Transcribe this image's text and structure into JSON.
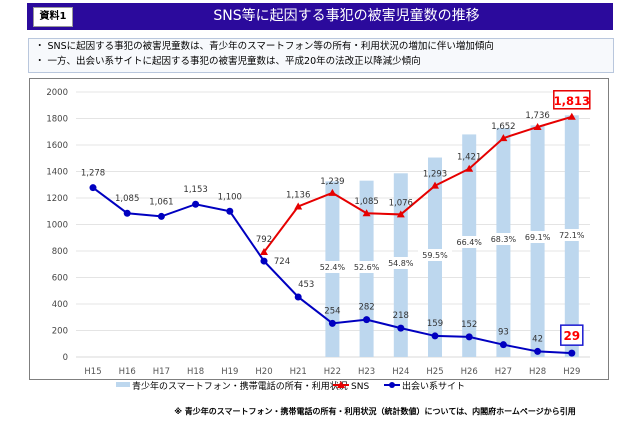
{
  "header": {
    "doc_label": "資料1",
    "title": "SNS等に起因する事犯の被害児童数の推移"
  },
  "summary": [
    "・ SNSに起因する事犯の被害児童数は、青少年のスマートフォン等の所有・利用状況の増加に伴い増加傾向",
    "・ 一方、出会い系サイトに起因する事犯の被害児童数は、平成20年の法改正以降減少傾向"
  ],
  "footnote": "※ 青少年のスマートフォン・携帯電話の所有・利用状況（統計数値）については、内閣府ホームページから引用",
  "chart_data": {
    "type": "bar+line",
    "title": "SNS等に起因する事犯の被害児童数の推移",
    "categories": [
      "H15",
      "H16",
      "H17",
      "H18",
      "H19",
      "H20",
      "H21",
      "H22",
      "H23",
      "H24",
      "H25",
      "H26",
      "H27",
      "H28",
      "H29"
    ],
    "yticks": [
      "0",
      "200",
      "400",
      "600",
      "800",
      "1000",
      "1200",
      "1400",
      "1600",
      "1800",
      "2000"
    ],
    "ylim": [
      0,
      2000
    ],
    "grid": true,
    "legend_position": "bottom",
    "series": [
      {
        "name": "青少年のスマートフォン・携帯電話の所有・利用状況",
        "kind": "bar",
        "color": "#bdd7ee",
        "unit": "%",
        "values": [
          null,
          null,
          null,
          null,
          null,
          null,
          null,
          52.4,
          52.6,
          54.8,
          59.5,
          66.4,
          68.3,
          69.1,
          72.1
        ],
        "labels": [
          null,
          null,
          null,
          null,
          null,
          null,
          null,
          "52.4%",
          "52.6%",
          "54.8%",
          "59.5%",
          "66.4%",
          "68.3%",
          "69.1%",
          "72.1%"
        ]
      },
      {
        "name": "SNS",
        "kind": "line",
        "marker": "triangle",
        "color": "#e60000",
        "values": [
          null,
          null,
          null,
          null,
          null,
          792,
          1136,
          1239,
          1085,
          1076,
          1293,
          1421,
          1652,
          1736,
          1813
        ],
        "labels": [
          null,
          null,
          null,
          null,
          null,
          "792",
          "1,136",
          "1,239",
          "1,085",
          "1,076",
          "1,293",
          "1,421",
          "1,652",
          "1,736",
          "1,813"
        ],
        "highlight_last": true
      },
      {
        "name": "出会い系サイト",
        "kind": "line",
        "marker": "circle",
        "color": "#0000c0",
        "values": [
          1278,
          1085,
          1061,
          1153,
          1100,
          724,
          453,
          254,
          282,
          218,
          159,
          152,
          93,
          42,
          29
        ],
        "labels": [
          "1,278",
          "1,085",
          "1,061",
          "1,153",
          "1,100",
          "724",
          "453",
          "254",
          "282",
          "218",
          "159",
          "152",
          "93",
          "42",
          "29"
        ],
        "highlight_last": true
      }
    ]
  }
}
